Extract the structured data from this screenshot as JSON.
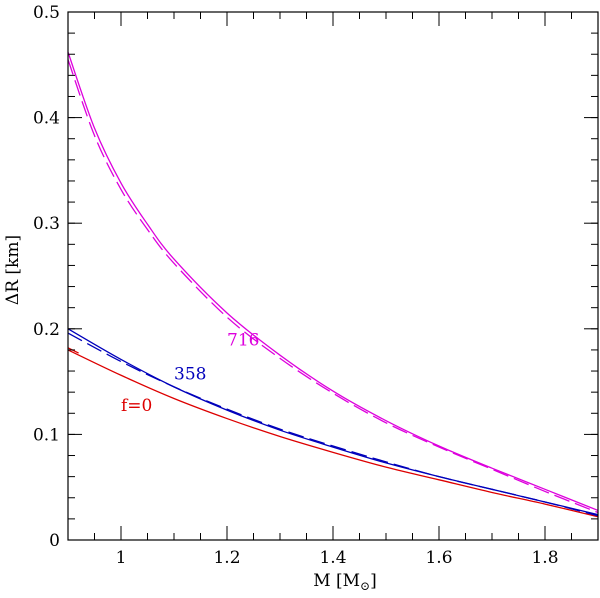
{
  "chart_data": {
    "type": "line",
    "title": "",
    "xlabel": "M [M",
    "xlabel_sub": "⊙",
    "xlabel_close": "]",
    "ylabel": "ΔR [km]",
    "xlim": [
      0.9,
      1.9
    ],
    "ylim": [
      0,
      0.5
    ],
    "x_ticks": [
      1,
      1.2,
      1.4,
      1.6,
      1.8
    ],
    "x_tick_labels": [
      "1",
      "1.2",
      "1.4",
      "1.6",
      "1.8"
    ],
    "y_ticks": [
      0,
      0.1,
      0.2,
      0.3,
      0.4,
      0.5
    ],
    "y_tick_labels": [
      "0",
      "0.1",
      "0.2",
      "0.3",
      "0.4",
      "0.5"
    ],
    "grid": false,
    "legend": "none",
    "series": [
      {
        "label": "f=0",
        "label_pos": [
          1.0,
          0.122
        ],
        "color": "#dd0000",
        "dashed": false,
        "x": [
          0.9,
          1.0,
          1.1,
          1.2,
          1.3,
          1.4,
          1.5,
          1.6,
          1.7,
          1.8,
          1.9
        ],
        "y": [
          0.18,
          0.156,
          0.134,
          0.115,
          0.098,
          0.083,
          0.069,
          0.057,
          0.045,
          0.034,
          0.022
        ]
      },
      {
        "label": "f=0 dashed",
        "show_label": false,
        "color": "#dd0000",
        "dashed": true,
        "x": [
          0.9,
          0.92
        ],
        "y": [
          0.182,
          0.177
        ]
      },
      {
        "label": "358",
        "label_pos": [
          1.1,
          0.152
        ],
        "color": "#0000bb",
        "dashed": false,
        "x": [
          0.9,
          1.0,
          1.1,
          1.2,
          1.3,
          1.4,
          1.5,
          1.6,
          1.7,
          1.8,
          1.9
        ],
        "y": [
          0.2,
          0.171,
          0.145,
          0.123,
          0.104,
          0.088,
          0.073,
          0.06,
          0.048,
          0.036,
          0.024
        ]
      },
      {
        "label": "358 dashed",
        "show_label": false,
        "color": "#0000bb",
        "dashed": true,
        "x": [
          0.9,
          1.0,
          1.1,
          1.2,
          1.3,
          1.4,
          1.5,
          1.6,
          1.7,
          1.8,
          1.9
        ],
        "y": [
          0.196,
          0.169,
          0.145,
          0.124,
          0.105,
          0.089,
          0.074,
          0.06,
          0.048,
          0.036,
          0.023
        ]
      },
      {
        "label": "716",
        "label_pos": [
          1.2,
          0.184
        ],
        "color": "#dd00dd",
        "dashed": false,
        "x": [
          0.9,
          0.95,
          1.0,
          1.05,
          1.1,
          1.2,
          1.3,
          1.4,
          1.5,
          1.6,
          1.7,
          1.8,
          1.9
        ],
        "y": [
          0.462,
          0.39,
          0.338,
          0.299,
          0.266,
          0.215,
          0.175,
          0.141,
          0.113,
          0.089,
          0.068,
          0.048,
          0.028
        ]
      },
      {
        "label": "716 dashed",
        "show_label": false,
        "color": "#dd00dd",
        "dashed": true,
        "x": [
          0.9,
          0.95,
          1.0,
          1.05,
          1.1,
          1.2,
          1.3,
          1.4,
          1.5,
          1.6,
          1.7,
          1.8,
          1.9
        ],
        "y": [
          0.455,
          0.383,
          0.332,
          0.294,
          0.262,
          0.211,
          0.172,
          0.139,
          0.111,
          0.088,
          0.067,
          0.046,
          0.026
        ]
      }
    ]
  }
}
